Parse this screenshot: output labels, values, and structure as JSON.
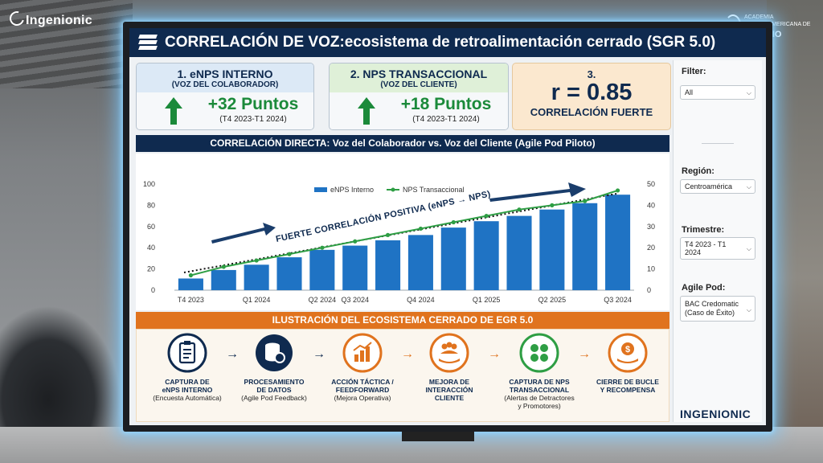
{
  "watermark_left": "Ingenionic",
  "watermark_right": {
    "line1": "ACADEMIA",
    "line2": "CENTROAMERICANA DE",
    "line3": "INGENIO"
  },
  "title": "CORRELACIÓN DE VOZ:ecosistema de retroalimentación cerrado (SGR 5.0)",
  "cards": [
    {
      "title": "1. eNPS INTERNO",
      "subtitle": "(VOZ DEL COLABORADOR)",
      "value": "+32 Puntos",
      "period": "(T4 2023-T1 2024)",
      "head_color": "#dce9f6",
      "icon": "up-arrow-icon"
    },
    {
      "title": "2. NPS TRANSACCIONAL",
      "subtitle": "(VOZ DEL CLIENTE)",
      "value": "+18 Puntos",
      "period": "(T4 2023-T1 2024)",
      "head_color": "#dff0d8",
      "icon": "up-arrow-icon"
    }
  ],
  "correlation": {
    "number": "3.",
    "value": "r = 0.85",
    "label": "CORRELACIÓN FUERTE"
  },
  "filters": {
    "filter_label": "Filter:",
    "filter_value": "All",
    "region_label": "Región:",
    "region_value": "Centroamérica",
    "quarter_label": "Trimestre:",
    "quarter_value": "T4 2023 - T1 2024",
    "pod_label": "Agile Pod:",
    "pod_value": "BAC Credomatic (Caso de Éxito)"
  },
  "brand": "INGENIONIC",
  "chart_header": "CORRELACIÓN DIRECTA: Voz del Colaborador vs. Voz del Cliente (Agile Pod Piloto)",
  "chart_data": {
    "type": "bar",
    "annotation": "FUERTE CORRELACIÓN POSITIVA (eNPS → NPS)",
    "categories": [
      "T4 2023",
      "",
      "Q1 2024",
      "",
      "Q2 2024",
      "Q3 2024",
      "",
      "Q4 2024",
      "",
      "Q1 2025",
      "",
      "Q2 2025",
      "",
      "Q3 2024"
    ],
    "x_tick_labels": [
      "T4 2023",
      "Q1 2024",
      "Q2 2024",
      "Q3 2024",
      "Q4 2024",
      "Q1 2025",
      "Q2 2025",
      "Q3 2024"
    ],
    "x_tick_label_indices": [
      0,
      2,
      4,
      5,
      7,
      9,
      11,
      13
    ],
    "series": [
      {
        "name": "eNPS Interno",
        "type": "bar",
        "axis": "left",
        "color": "#1f73c4",
        "values": [
          11,
          19,
          24,
          31,
          38,
          42,
          47,
          52,
          59,
          65,
          70,
          76,
          82,
          90
        ]
      },
      {
        "name": "NPS Transaccional",
        "type": "line",
        "axis": "right",
        "color": "#2e9e44",
        "values": [
          7,
          11,
          14,
          17,
          20,
          23,
          26,
          29,
          32,
          35,
          38,
          40,
          42,
          47
        ]
      }
    ],
    "ylim_left": [
      0,
      100
    ],
    "yticks_left": [
      0,
      20,
      40,
      60,
      80,
      100
    ],
    "ylim_right": [
      0,
      50
    ],
    "yticks_right": [
      0,
      10,
      20,
      30,
      40,
      50
    ],
    "legend": "top-center",
    "grid": false
  },
  "eco_header": "ILUSTRACIÓN DEL ECOSISTEMA CERRADO DE EGR 5.0",
  "eco_steps": [
    {
      "title": "CAPTURA DE\neNPS INTERNO",
      "sub": "(Encuesta Automática)",
      "icon": "clipboard-icon",
      "color": "#0f2a4f"
    },
    {
      "title": "PROCESAMIENTO\nDE DATOS",
      "sub": "(Agile Pod Feedback)",
      "icon": "database-gear-icon",
      "color": "#0f2a4f"
    },
    {
      "title": "ACCIÓN TÁCTICA /\nFEEDFORWARD",
      "sub": "(Mejora Operativa)",
      "icon": "bar-chart-icon",
      "color": "#e0731e"
    },
    {
      "title": "MEJORA DE\nINTERACCIÓN\nCLIENTE",
      "sub": "",
      "icon": "people-hand-icon",
      "color": "#e0731e"
    },
    {
      "title": "CAPTURA DE NPS\nTRANSACCIONAL",
      "sub": "(Alertas de Detractores\ny Promotores)",
      "icon": "smileys-icon",
      "color": "#2e9e44"
    },
    {
      "title": "CIERRE DE BUCLE\nY RECOMPENSA",
      "sub": "",
      "icon": "money-hand-icon",
      "color": "#e0731e"
    }
  ],
  "connector_glyph": "→"
}
